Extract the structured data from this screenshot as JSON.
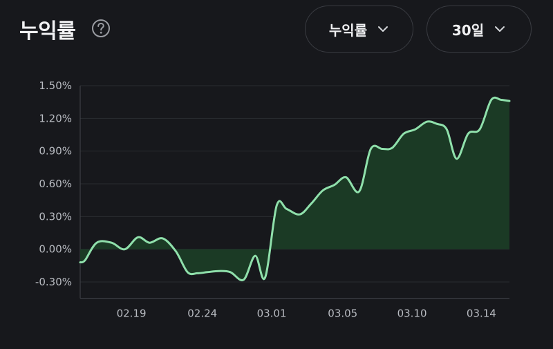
{
  "header": {
    "title": "누익률",
    "help_icon": "question-circle-icon",
    "metric_dropdown": {
      "label": "누익률",
      "icon": "chevron-down-icon"
    },
    "period_dropdown": {
      "label": "30일",
      "icon": "chevron-down-icon"
    }
  },
  "colors": {
    "background": "#17181c",
    "line": "#8fe0ab",
    "fill": "#1b3a25",
    "grid": "#2a2c31",
    "tick_text": "#b9bcc2"
  },
  "chart_data": {
    "type": "area",
    "ylim": [
      -0.45,
      1.5
    ],
    "yticks": [
      {
        "value": 1.5,
        "label": "1.50%"
      },
      {
        "value": 1.2,
        "label": "1.20%"
      },
      {
        "value": 0.9,
        "label": "0.90%"
      },
      {
        "value": 0.6,
        "label": "0.60%"
      },
      {
        "value": 0.3,
        "label": "0.30%"
      },
      {
        "value": 0.0,
        "label": "0.00%"
      },
      {
        "value": -0.3,
        "label": "-0.30%"
      }
    ],
    "xlim": [
      0,
      26
    ],
    "xticks": [
      {
        "x": 3.1,
        "label": "02.19"
      },
      {
        "x": 7.4,
        "label": "02.24"
      },
      {
        "x": 11.6,
        "label": "03.01"
      },
      {
        "x": 15.9,
        "label": "03.05"
      },
      {
        "x": 20.1,
        "label": "03.10"
      },
      {
        "x": 24.3,
        "label": "03.14"
      }
    ],
    "x": [
      0,
      0.3,
      1.0,
      1.9,
      2.7,
      3.5,
      4.2,
      5.0,
      5.8,
      6.5,
      7.1,
      7.7,
      8.4,
      9.1,
      9.9,
      10.6,
      11.2,
      11.9,
      12.5,
      13.3,
      14.0,
      14.7,
      15.4,
      16.1,
      16.9,
      17.6,
      18.3,
      18.9,
      19.6,
      20.3,
      21.0,
      21.6,
      22.2,
      22.8,
      23.5,
      24.2,
      24.9,
      25.5,
      26.0
    ],
    "values": [
      -0.12,
      -0.1,
      0.06,
      0.06,
      0.0,
      0.11,
      0.06,
      0.1,
      -0.02,
      -0.21,
      -0.22,
      -0.21,
      -0.2,
      -0.21,
      -0.28,
      -0.06,
      -0.26,
      0.4,
      0.37,
      0.32,
      0.42,
      0.54,
      0.59,
      0.66,
      0.53,
      0.92,
      0.92,
      0.93,
      1.06,
      1.1,
      1.17,
      1.15,
      1.1,
      0.83,
      1.06,
      1.1,
      1.37,
      1.37,
      1.36
    ]
  }
}
